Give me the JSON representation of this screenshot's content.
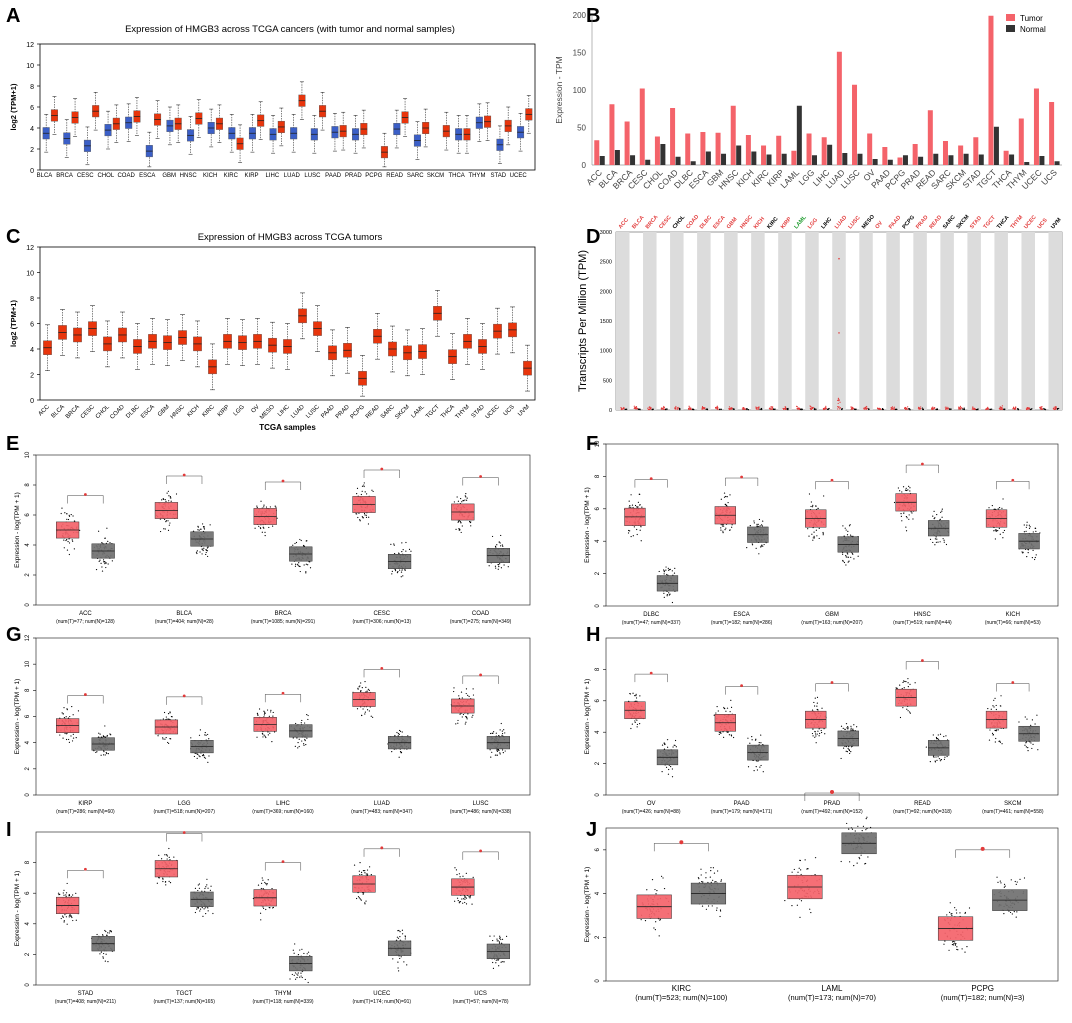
{
  "panels": {
    "A": {
      "letter": "A",
      "type": "box",
      "title": "Expression of HMGB3 across TCGA cancers (with tumor and normal samples)",
      "ylabel": "log2 (TPM+1)",
      "ylim": [
        0,
        12
      ],
      "yticks": [
        0,
        2,
        4,
        6,
        8,
        10,
        12
      ],
      "colors": {
        "tumor": "#e8350c",
        "normal": "#3b5fc7"
      },
      "groups": [
        {
          "label": "BLCA",
          "normal": 3.5,
          "tumor": 5.2
        },
        {
          "label": "BRCA",
          "normal": 3.0,
          "tumor": 5.0
        },
        {
          "label": "CESC",
          "normal": 2.3,
          "tumor": 5.6
        },
        {
          "label": "CHOL",
          "normal": 3.8,
          "tumor": 4.4
        },
        {
          "label": "COAD",
          "normal": 4.5,
          "tumor": 5.1
        },
        {
          "label": "ESCA",
          "normal": 1.8,
          "tumor": 4.8
        },
        {
          "label": "GBM",
          "normal": 4.2,
          "tumor": 4.4
        },
        {
          "label": "HNSC",
          "normal": 3.3,
          "tumor": 4.9
        },
        {
          "label": "KICH",
          "normal": 4.0,
          "tumor": 4.4
        },
        {
          "label": "KIRC",
          "normal": 3.5,
          "tumor": 2.5
        },
        {
          "label": "KIRP",
          "normal": 3.5,
          "tumor": 4.7
        },
        {
          "label": "LIHC",
          "normal": 3.4,
          "tumor": 4.1
        },
        {
          "label": "LUAD",
          "normal": 3.5,
          "tumor": 6.6
        },
        {
          "label": "LUSC",
          "normal": 3.4,
          "tumor": 5.6
        },
        {
          "label": "PAAD",
          "normal": 3.6,
          "tumor": 3.7
        },
        {
          "label": "PRAD",
          "normal": 3.4,
          "tumor": 3.9
        },
        {
          "label": "PCPG",
          "normal": null,
          "tumor": 1.7
        },
        {
          "label": "READ",
          "normal": 3.9,
          "tumor": 5.0
        },
        {
          "label": "SARC",
          "normal": 2.8,
          "tumor": 4.0
        },
        {
          "label": "SKCM",
          "normal": null,
          "tumor": 3.7
        },
        {
          "label": "THCA",
          "normal": 3.4,
          "tumor": 3.4
        },
        {
          "label": "THYM",
          "normal": 4.5,
          "tumor": 4.6
        },
        {
          "label": "STAD",
          "normal": 2.4,
          "tumor": 4.2
        },
        {
          "label": "UCEC",
          "normal": 3.6,
          "tumor": 5.3
        }
      ]
    },
    "B": {
      "letter": "B",
      "type": "bar",
      "ylabel": "Expression - TPM",
      "ylim": [
        0,
        200
      ],
      "yticks": [
        0,
        50,
        100,
        150,
        200
      ],
      "legend": {
        "tumor": "Tumor",
        "normal": "Normal"
      },
      "colors": {
        "tumor": "#f4636a",
        "normal": "#333333"
      },
      "categories": [
        "ACC",
        "BLCA",
        "BRCA",
        "CESC",
        "CHOL",
        "COAD",
        "DLBC",
        "ESCA",
        "GBM",
        "HNSC",
        "KICH",
        "KIRC",
        "KIRP",
        "LAML",
        "LGG",
        "LIHC",
        "LUAD",
        "LUSC",
        "OV",
        "PAAD",
        "PCPG",
        "PRAD",
        "READ",
        "SARC",
        "SKCM",
        "STAD",
        "TGCT",
        "THCA",
        "THYM",
        "UCEC",
        "UCS"
      ],
      "series": [
        {
          "name": "Tumor",
          "values": [
            33,
            81,
            58,
            102,
            38,
            76,
            42,
            44,
            43,
            79,
            40,
            26,
            39,
            19,
            42,
            37,
            151,
            107,
            42,
            24,
            10,
            28,
            73,
            32,
            26,
            37,
            199,
            19,
            62,
            102,
            84
          ]
        },
        {
          "name": "Normal",
          "values": [
            12,
            20,
            13,
            7,
            28,
            11,
            5,
            18,
            15,
            26,
            18,
            14,
            15,
            79,
            13,
            27,
            16,
            15,
            8,
            7,
            13,
            11,
            15,
            13,
            15,
            14,
            51,
            14,
            4,
            12,
            5
          ]
        }
      ]
    },
    "C": {
      "letter": "C",
      "type": "box",
      "title": "Expression of HMGB3 across TCGA tumors",
      "ylabel": "log2 (TPM+1)",
      "xlabel": "TCGA samples",
      "ylim": [
        0,
        12
      ],
      "yticks": [
        0,
        2,
        4,
        6,
        8,
        10,
        12
      ],
      "color": "#e8350c",
      "groups": [
        {
          "label": "ACC",
          "median": 4.1
        },
        {
          "label": "BLCA",
          "median": 5.3
        },
        {
          "label": "BRCA",
          "median": 5.1
        },
        {
          "label": "CESC",
          "median": 5.6
        },
        {
          "label": "CHOL",
          "median": 4.4
        },
        {
          "label": "COAD",
          "median": 5.1
        },
        {
          "label": "DLBC",
          "median": 4.2
        },
        {
          "label": "ESCA",
          "median": 4.6
        },
        {
          "label": "GBM",
          "median": 4.5
        },
        {
          "label": "HNSC",
          "median": 4.9
        },
        {
          "label": "KICH",
          "median": 4.4
        },
        {
          "label": "KIRC",
          "median": 2.6
        },
        {
          "label": "KIRP",
          "median": 4.6
        },
        {
          "label": "LGG",
          "median": 4.5
        },
        {
          "label": "OV",
          "median": 4.6
        },
        {
          "label": "MESO",
          "median": 4.3
        },
        {
          "label": "LIHC",
          "median": 4.2
        },
        {
          "label": "LUAD",
          "median": 6.6
        },
        {
          "label": "LUSC",
          "median": 5.6
        },
        {
          "label": "PAAD",
          "median": 3.7
        },
        {
          "label": "PRAD",
          "median": 3.9
        },
        {
          "label": "PCPG",
          "median": 1.7
        },
        {
          "label": "READ",
          "median": 5.0
        },
        {
          "label": "SARC",
          "median": 4.0
        },
        {
          "label": "SKCM",
          "median": 3.7
        },
        {
          "label": "LAML",
          "median": 3.8
        },
        {
          "label": "TGCT",
          "median": 6.8
        },
        {
          "label": "THCA",
          "median": 3.4
        },
        {
          "label": "THYM",
          "median": 4.6
        },
        {
          "label": "STAD",
          "median": 4.2
        },
        {
          "label": "UCEC",
          "median": 5.4
        },
        {
          "label": "UCS",
          "median": 5.5
        },
        {
          "label": "UVM",
          "median": 2.5
        }
      ]
    },
    "D": {
      "letter": "D",
      "type": "dot",
      "ylabel": "Transcripts Per Million (TPM)",
      "ylim": [
        0,
        3000
      ],
      "yticks": [
        0,
        500,
        1000,
        1500,
        2000,
        2500,
        3000
      ],
      "labels": [
        {
          "t": "ACC",
          "c": "red"
        },
        {
          "t": "BLCA",
          "c": "red"
        },
        {
          "t": "BRCA",
          "c": "red"
        },
        {
          "t": "CESC",
          "c": "red"
        },
        {
          "t": "CHOL",
          "c": "black"
        },
        {
          "t": "COAD",
          "c": "red"
        },
        {
          "t": "DLBC",
          "c": "red"
        },
        {
          "t": "ESCA",
          "c": "red"
        },
        {
          "t": "GBM",
          "c": "red"
        },
        {
          "t": "HNSC",
          "c": "red"
        },
        {
          "t": "KICH",
          "c": "red"
        },
        {
          "t": "KIRC",
          "c": "black"
        },
        {
          "t": "KIRP",
          "c": "red"
        },
        {
          "t": "LAML",
          "c": "green"
        },
        {
          "t": "LGG",
          "c": "red"
        },
        {
          "t": "LIHC",
          "c": "black"
        },
        {
          "t": "LUAD",
          "c": "red"
        },
        {
          "t": "LUSC",
          "c": "red"
        },
        {
          "t": "MESO",
          "c": "black"
        },
        {
          "t": "OV",
          "c": "red"
        },
        {
          "t": "PAAD",
          "c": "red"
        },
        {
          "t": "PCPG",
          "c": "black"
        },
        {
          "t": "PRAD",
          "c": "red"
        },
        {
          "t": "READ",
          "c": "red"
        },
        {
          "t": "SARC",
          "c": "black"
        },
        {
          "t": "SKCM",
          "c": "black"
        },
        {
          "t": "STAD",
          "c": "red"
        },
        {
          "t": "TGCT",
          "c": "red"
        },
        {
          "t": "THCA",
          "c": "black"
        },
        {
          "t": "THYM",
          "c": "red"
        },
        {
          "t": "UCEC",
          "c": "red"
        },
        {
          "t": "UCS",
          "c": "red"
        },
        {
          "t": "UVM",
          "c": "black"
        }
      ]
    },
    "E": {
      "letter": "E",
      "type": "gepia",
      "ylabel": "Expression - log(TPM + 1)",
      "ylim": [
        0,
        10
      ],
      "yticks": [
        0,
        2,
        4,
        6,
        8,
        10
      ],
      "groups": [
        {
          "label": "ACC",
          "n": "(num(T)=77; num(N)=128)",
          "t": 5.0,
          "nn": 3.6
        },
        {
          "label": "BLCA",
          "n": "(num(T)=404; num(N)=28)",
          "t": 6.3,
          "nn": 4.4
        },
        {
          "label": "BRCA",
          "n": "(num(T)=1085; num(N)=291)",
          "t": 5.9,
          "nn": 3.4
        },
        {
          "label": "CESC",
          "n": "(num(T)=306; num(N)=13)",
          "t": 6.7,
          "nn": 2.9
        },
        {
          "label": "COAD",
          "n": "(num(T)=275; num(N)=349)",
          "t": 6.2,
          "nn": 3.3
        }
      ]
    },
    "F": {
      "letter": "F",
      "type": "gepia",
      "ylabel": "Expression - log(TPM + 1)",
      "ylim": [
        0,
        10
      ],
      "yticks": [
        0,
        2,
        4,
        6,
        8,
        10
      ],
      "groups": [
        {
          "label": "DLBC",
          "n": "(num(T)=47; num(N)=337)",
          "t": 5.5,
          "nn": 1.4
        },
        {
          "label": "ESCA",
          "n": "(num(T)=182; num(N)=286)",
          "t": 5.6,
          "nn": 4.4
        },
        {
          "label": "GBM",
          "n": "(num(T)=163; num(N)=207)",
          "t": 5.4,
          "nn": 3.8
        },
        {
          "label": "HNSC",
          "n": "(num(T)=519; num(N)=44)",
          "t": 6.4,
          "nn": 4.8
        },
        {
          "label": "KICH",
          "n": "(num(T)=66; num(N)=53)",
          "t": 5.4,
          "nn": 4.0
        }
      ]
    },
    "G": {
      "letter": "G",
      "type": "gepia",
      "ylabel": "Expression - log(TPM + 1)",
      "ylim": [
        0,
        12
      ],
      "yticks": [
        0,
        2,
        4,
        6,
        8,
        10,
        12
      ],
      "groups": [
        {
          "label": "KIRP",
          "n": "(num(T)=286; num(N)=60)",
          "t": 5.3,
          "nn": 3.9
        },
        {
          "label": "LGG",
          "n": "(num(T)=518; num(N)=207)",
          "t": 5.2,
          "nn": 3.7
        },
        {
          "label": "LIHC",
          "n": "(num(T)=369; num(N)=160)",
          "t": 5.4,
          "nn": 4.9
        },
        {
          "label": "LUAD",
          "n": "(num(T)=483; num(N)=347)",
          "t": 7.3,
          "nn": 4.0
        },
        {
          "label": "LUSC",
          "n": "(num(T)=486; num(N)=338)",
          "t": 6.8,
          "nn": 4.0
        }
      ]
    },
    "H": {
      "letter": "H",
      "type": "gepia",
      "ylabel": "Expression - log(TPM + 1)",
      "ylim": [
        0,
        10
      ],
      "yticks": [
        0,
        2,
        4,
        6,
        8
      ],
      "groups": [
        {
          "label": "OV",
          "n": "(num(T)=426; num(N)=88)",
          "t": 5.4,
          "nn": 2.4
        },
        {
          "label": "PAAD",
          "n": "(num(T)=179; num(N)=171)",
          "t": 4.6,
          "nn": 2.7
        },
        {
          "label": "PRAD",
          "n": "(num(T)=492; num(N)=152)",
          "t": 4.8,
          "nn": 3.6
        },
        {
          "label": "READ",
          "n": "(num(T)=92; num(N)=318)",
          "t": 6.2,
          "nn": 3.0
        },
        {
          "label": "SKCM",
          "n": "(num(T)=461; num(N)=558)",
          "t": 4.8,
          "nn": 3.9
        }
      ]
    },
    "I": {
      "letter": "I",
      "type": "gepia",
      "ylabel": "Expression - log(TPM + 1)",
      "ylim": [
        0,
        10
      ],
      "yticks": [
        0,
        2,
        4,
        6,
        8
      ],
      "groups": [
        {
          "label": "STAD",
          "n": "(num(T)=408; num(N)=211)",
          "t": 5.2,
          "nn": 2.7
        },
        {
          "label": "TGCT",
          "n": "(num(T)=137; num(N)=165)",
          "t": 7.6,
          "nn": 5.6
        },
        {
          "label": "THYM",
          "n": "(num(T)=118; num(N)=339)",
          "t": 5.7,
          "nn": 1.4
        },
        {
          "label": "UCEC",
          "n": "(num(T)=174; num(N)=91)",
          "t": 6.6,
          "nn": 2.4
        },
        {
          "label": "UCS",
          "n": "(num(T)=57; num(N)=78)",
          "t": 6.4,
          "nn": 2.2
        }
      ]
    },
    "J": {
      "letter": "J",
      "type": "gepia",
      "ylabel": "Expression - log(TPM + 1)",
      "ylim": [
        0,
        7
      ],
      "yticks": [
        0,
        2,
        4,
        6
      ],
      "groups": [
        {
          "label": "KIRC",
          "n": "(num(T)=523; num(N)=100)",
          "t": 3.4,
          "nn": 4.0
        },
        {
          "label": "LAML",
          "n": "(num(T)=173; num(N)=70)",
          "t": 4.3,
          "nn": 6.3
        },
        {
          "label": "PCPG",
          "n": "(num(T)=182; num(N)=3)",
          "t": 2.4,
          "nn": 3.7
        }
      ]
    }
  },
  "chart_data": [
    {
      "panel": "A",
      "type": "box",
      "title": "Expression of HMGB3 across TCGA cancers (with tumor and normal samples)",
      "ylabel": "log2 (TPM+1)",
      "ylim": [
        0,
        12
      ]
    },
    {
      "panel": "B",
      "type": "bar",
      "ylabel": "Expression - TPM",
      "ylim": [
        0,
        200
      ]
    },
    {
      "panel": "C",
      "type": "box",
      "title": "Expression of HMGB3 across TCGA tumors",
      "xlabel": "TCGA samples",
      "ylim": [
        0,
        12
      ]
    },
    {
      "panel": "D",
      "type": "scatter",
      "ylabel": "Transcripts Per Million (TPM)",
      "ylim": [
        0,
        3000
      ]
    },
    {
      "panel": "E-J",
      "type": "box",
      "ylabel": "Expression - log(TPM + 1)"
    }
  ]
}
